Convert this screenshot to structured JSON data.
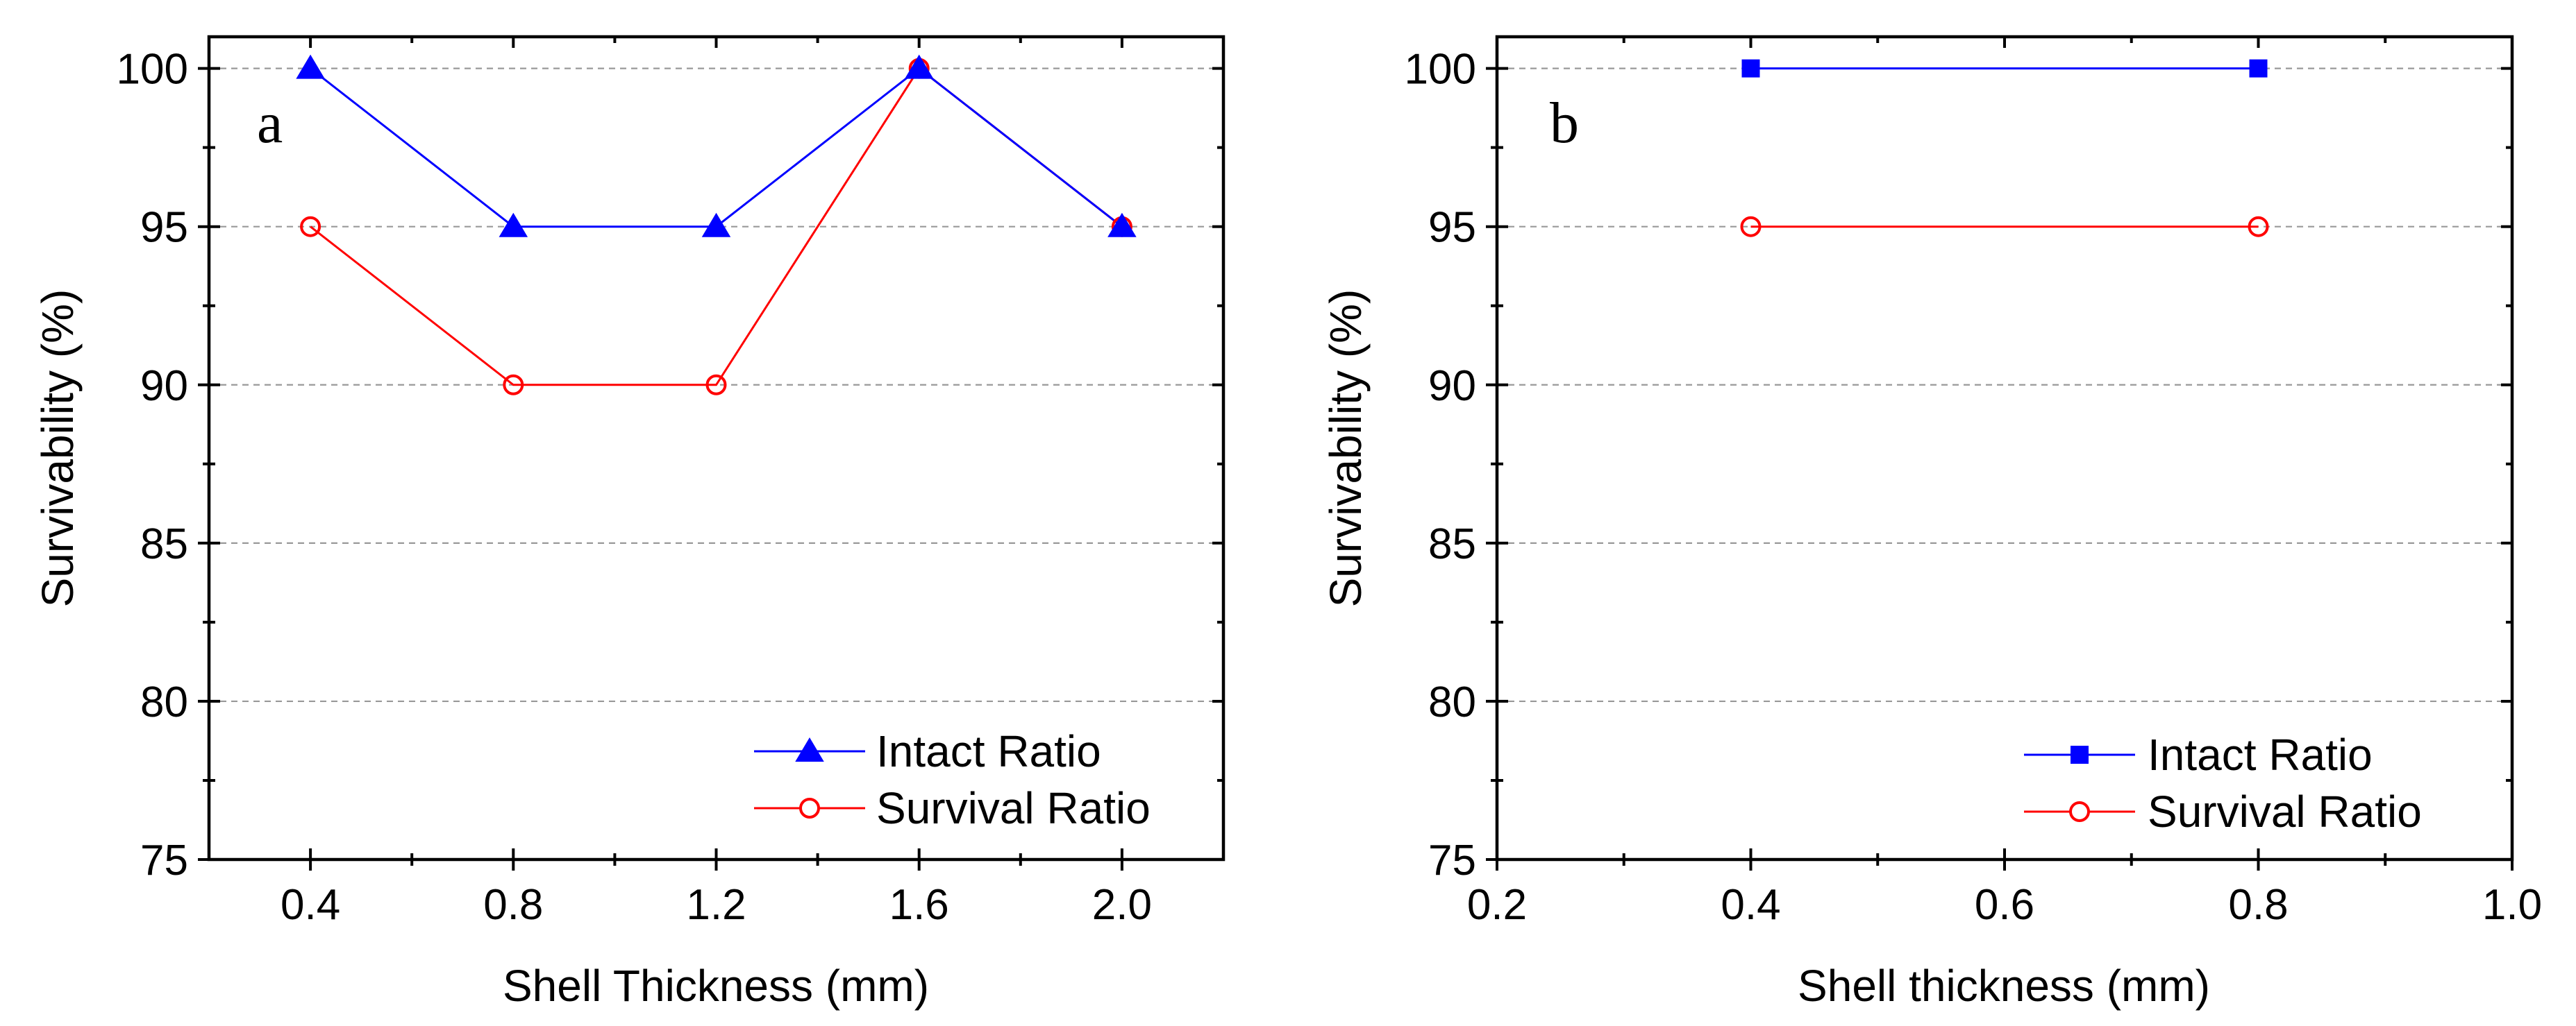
{
  "chart_data": [
    {
      "type": "line",
      "panel_label": "a",
      "xlabel": "Shell Thickness (mm)",
      "ylabel": "Survivability (%)",
      "xlim": [
        0.2,
        2.2
      ],
      "ylim": [
        75,
        101
      ],
      "x_ticks": [
        "0.4",
        "0.8",
        "1.2",
        "1.6",
        "2.0"
      ],
      "x_tick_values": [
        0.4,
        0.8,
        1.2,
        1.6,
        2.0
      ],
      "x_minor_step": 0.2,
      "y_ticks": [
        "75",
        "80",
        "85",
        "90",
        "95",
        "100"
      ],
      "y_tick_values": [
        75,
        80,
        85,
        90,
        95,
        100
      ],
      "y_minor_step": 2.5,
      "grid": "horizontal dashed",
      "legend_position": "bottom-right",
      "series": [
        {
          "name": "Intact Ratio",
          "color": "#0000ff",
          "marker": "triangle-filled",
          "x": [
            0.4,
            0.8,
            1.2,
            1.6,
            2.0
          ],
          "y": [
            100,
            95,
            95,
            100,
            95
          ]
        },
        {
          "name": "Survival Ratio",
          "color": "#ff0000",
          "marker": "circle-open",
          "x": [
            0.4,
            0.8,
            1.2,
            1.6,
            2.0
          ],
          "y": [
            95,
            90,
            90,
            100,
            95
          ]
        }
      ]
    },
    {
      "type": "line",
      "panel_label": "b",
      "xlabel": "Shell thickness (mm)",
      "ylabel": "Survivability (%)",
      "xlim": [
        0.2,
        1.0
      ],
      "ylim": [
        75,
        101
      ],
      "x_ticks": [
        "0.2",
        "0.4",
        "0.6",
        "0.8",
        "1.0"
      ],
      "x_tick_values": [
        0.2,
        0.4,
        0.6,
        0.8,
        1.0
      ],
      "x_minor_step": 0.1,
      "y_ticks": [
        "75",
        "80",
        "85",
        "90",
        "95",
        "100"
      ],
      "y_tick_values": [
        75,
        80,
        85,
        90,
        95,
        100
      ],
      "y_minor_step": 2.5,
      "grid": "horizontal dashed",
      "legend_position": "bottom-right",
      "series": [
        {
          "name": "Intact Ratio",
          "color": "#0000ff",
          "marker": "square-filled",
          "x": [
            0.4,
            0.8
          ],
          "y": [
            100,
            100
          ]
        },
        {
          "name": "Survival Ratio",
          "color": "#ff0000",
          "marker": "circle-open",
          "x": [
            0.4,
            0.8
          ],
          "y": [
            95,
            95
          ]
        }
      ]
    }
  ]
}
